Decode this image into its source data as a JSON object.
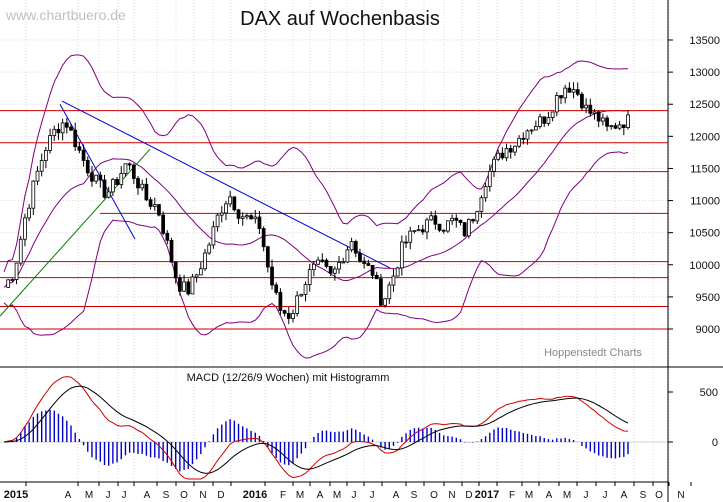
{
  "watermark": "www.chartbuero.de",
  "source_label": "Hoppenstedt Charts",
  "chart_data": [
    {
      "type": "candlestick",
      "title": "DAX auf Wochenbasis",
      "y_axis_ticks": [
        9000,
        9500,
        10000,
        10500,
        11000,
        11500,
        12000,
        12500,
        13000,
        13500
      ],
      "ylim": [
        8600,
        13600
      ],
      "x_axis_labels": [
        "2015",
        "A",
        "M",
        "J",
        "J",
        "A",
        "S",
        "O",
        "N",
        "D",
        "2016",
        "F",
        "M",
        "A",
        "M",
        "J",
        "J",
        "A",
        "S",
        "O",
        "N",
        "D",
        "2017",
        "F",
        "M",
        "A",
        "M",
        "J",
        "J",
        "A",
        "S",
        "O",
        "N"
      ],
      "support_resistance_levels": [
        12400,
        11900,
        11450,
        10800,
        10050,
        9800,
        9350,
        9000
      ],
      "close_path": [
        9650,
        9900,
        10700,
        11300,
        11800,
        12100,
        12250,
        11900,
        11550,
        11300,
        11100,
        11300,
        11600,
        11300,
        11000,
        10900,
        10300,
        9700,
        9600,
        9900,
        10300,
        10800,
        11100,
        10800,
        10700,
        10600,
        9800,
        9300,
        9200,
        9600,
        9900,
        10000,
        9800,
        10100,
        10400,
        10000,
        9900,
        9400,
        9800,
        10300,
        10500,
        10600,
        10700,
        10600,
        10700,
        10500,
        10800,
        11300,
        11600,
        11800,
        11900,
        12100,
        12200,
        12300,
        12600,
        12800,
        12700,
        12400,
        12300,
        12100,
        12200,
        12250
      ]
    },
    {
      "type": "line",
      "title": "MACD (12/26/9 Wochen) mit Histogramm",
      "y_axis_ticks": [
        0,
        500
      ],
      "ylim": [
        -500,
        800
      ]
    }
  ]
}
